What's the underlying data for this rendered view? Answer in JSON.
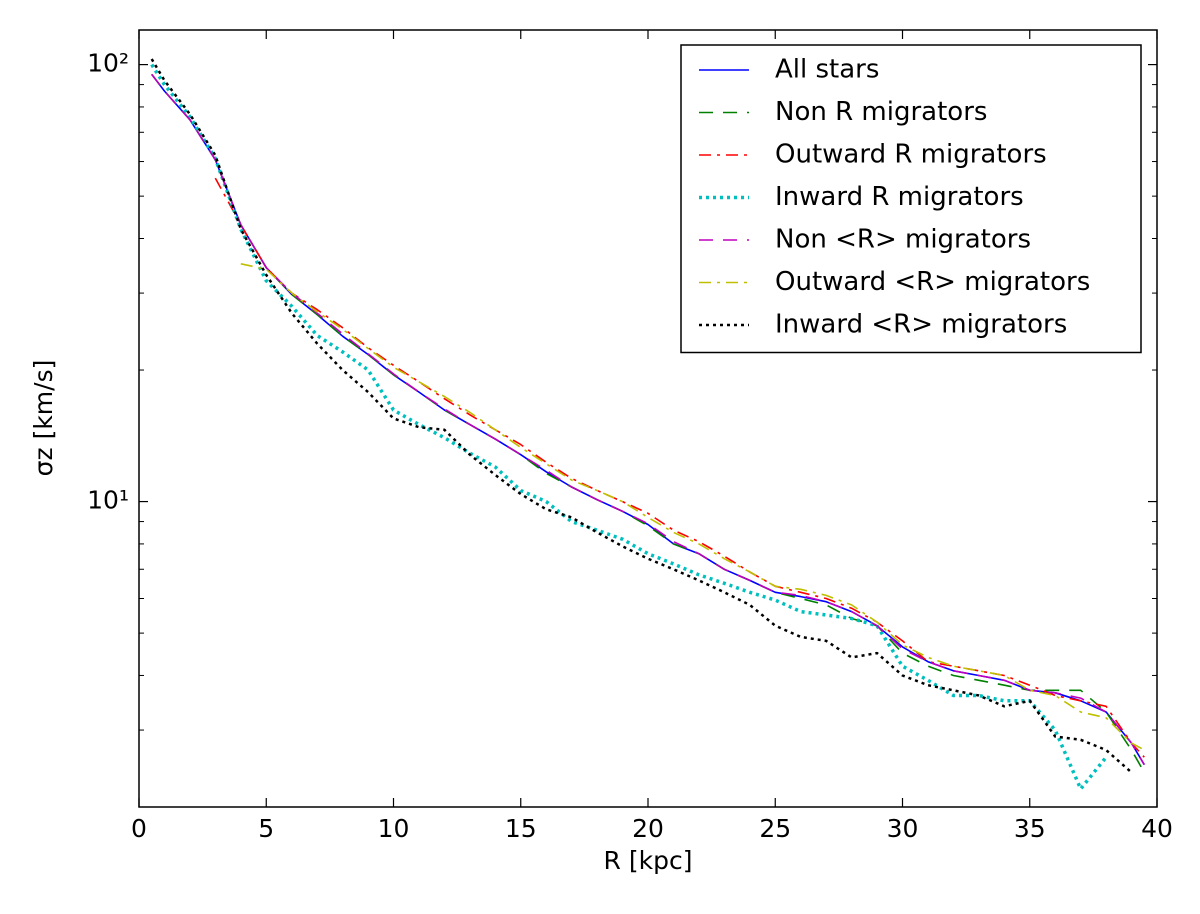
{
  "chart_data": {
    "type": "line",
    "xlabel": "R [kpc]",
    "ylabel": "σz [km/s]",
    "log_y": true,
    "xlim": [
      0,
      40
    ],
    "ylim": [
      2,
      120
    ],
    "xticks": [
      0,
      5,
      10,
      15,
      20,
      25,
      30,
      35,
      40
    ],
    "yticks": [
      {
        "value": 10,
        "label": "10¹"
      },
      {
        "value": 100,
        "label": "10²"
      }
    ],
    "yminorticks": [
      2,
      3,
      4,
      5,
      6,
      7,
      8,
      9,
      20,
      30,
      40,
      50,
      60,
      70,
      80,
      90
    ],
    "legend": "upper right",
    "x": [
      0.5,
      1,
      2,
      3,
      4,
      5,
      6,
      7,
      8,
      9,
      10,
      11,
      12,
      13,
      14,
      15,
      16,
      17,
      18,
      19,
      20,
      21,
      22,
      23,
      24,
      25,
      26,
      27,
      28,
      29,
      30,
      31,
      32,
      33,
      34,
      35,
      36,
      37,
      38,
      39,
      39.5
    ],
    "series": [
      {
        "name": "All stars",
        "color": "#0000ff",
        "linestyle": "solid",
        "values": [
          95,
          87,
          74.8,
          60.6,
          43,
          34.3,
          29.8,
          26.8,
          23.9,
          21.7,
          19.5,
          17.8,
          16.2,
          15.0,
          13.9,
          12.8,
          11.7,
          10.8,
          10.1,
          9.5,
          8.86,
          8.0,
          7.6,
          7.0,
          6.6,
          6.2,
          6.06,
          5.9,
          5.6,
          5.2,
          4.65,
          4.3,
          4.1,
          4.0,
          3.9,
          3.7,
          3.65,
          3.5,
          3.3,
          2.8,
          2.5
        ]
      },
      {
        "name": "Non R migrators",
        "color": "#008000",
        "linestyle": "dashed",
        "values": [
          95,
          87,
          74.8,
          60.6,
          43,
          34.3,
          29.8,
          26.8,
          23.9,
          21.7,
          19.5,
          17.8,
          16.2,
          15.0,
          13.9,
          12.8,
          11.6,
          10.8,
          10.1,
          9.5,
          8.8,
          8.0,
          7.6,
          7.0,
          6.6,
          6.2,
          6.0,
          5.8,
          5.4,
          5.2,
          4.5,
          4.2,
          4.0,
          3.9,
          3.8,
          3.7,
          3.7,
          3.7,
          3.3,
          2.7,
          2.4
        ]
      },
      {
        "name": "Outward R migrators",
        "color": "#ff0000",
        "linestyle": "dashdot",
        "values": [
          null,
          null,
          null,
          55,
          43,
          34.3,
          30,
          27.5,
          25,
          22.5,
          20.5,
          18.8,
          17.2,
          15.8,
          14.6,
          13.5,
          12.3,
          11.3,
          10.6,
          10.0,
          9.4,
          8.6,
          8.1,
          7.5,
          6.9,
          6.4,
          6.2,
          6.0,
          5.7,
          5.3,
          4.8,
          4.3,
          4.2,
          4.1,
          4.0,
          3.8,
          3.6,
          3.5,
          3.4,
          2.8,
          2.6
        ]
      },
      {
        "name": "Inward R migrators",
        "color": "#00bfbf",
        "linestyle": "dotted",
        "values": [
          100,
          90,
          76,
          61,
          42,
          32,
          28,
          24,
          22,
          20,
          16.2,
          15.0,
          14.0,
          12.9,
          12.0,
          10.6,
          10.0,
          9.0,
          8.6,
          8.2,
          7.6,
          7.2,
          6.8,
          6.5,
          6.2,
          5.95,
          5.6,
          5.5,
          5.4,
          5.2,
          4.2,
          3.9,
          3.6,
          3.6,
          3.5,
          3.5,
          3.0,
          2.2,
          2.6,
          null,
          null
        ]
      },
      {
        "name": "Non <R> migrators",
        "color": "#bf00bf",
        "linestyle": "dashed",
        "values": [
          95,
          87,
          74.8,
          60.6,
          43,
          34.3,
          30,
          27,
          24.2,
          21.8,
          19.6,
          17.8,
          16.3,
          15.0,
          13.9,
          12.8,
          11.8,
          10.8,
          10.1,
          9.5,
          8.9,
          8.1,
          7.6,
          7.0,
          6.6,
          6.2,
          6.1,
          5.9,
          5.6,
          5.2,
          4.6,
          4.3,
          4.1,
          4.0,
          3.9,
          3.7,
          3.65,
          3.55,
          3.3,
          2.8,
          2.5
        ]
      },
      {
        "name": "Outward <R> migrators",
        "color": "#bfbf00",
        "linestyle": "dashdot",
        "values": [
          null,
          null,
          null,
          null,
          35,
          34,
          30,
          27.2,
          24.8,
          22.4,
          20.3,
          18.8,
          17.4,
          16.0,
          14.6,
          13.3,
          12.2,
          11.2,
          10.6,
          10.0,
          9.2,
          8.5,
          8.0,
          7.4,
          6.9,
          6.4,
          6.3,
          6.1,
          5.8,
          5.3,
          4.7,
          4.4,
          4.2,
          4.1,
          4.0,
          3.7,
          3.6,
          3.3,
          3.2,
          2.8,
          2.7
        ]
      },
      {
        "name": "Inward <R> migrators",
        "color": "#000000",
        "linestyle": "dotted",
        "values": [
          103,
          92,
          77,
          62,
          42,
          33,
          27,
          23,
          20,
          17.8,
          15.5,
          14.8,
          14.6,
          12.8,
          11.5,
          10.4,
          9.6,
          9.2,
          8.5,
          7.9,
          7.4,
          7.0,
          6.6,
          6.2,
          5.8,
          5.2,
          4.9,
          4.8,
          4.4,
          4.5,
          4.0,
          3.8,
          3.7,
          3.6,
          3.4,
          3.5,
          2.9,
          2.85,
          2.7,
          2.4,
          null
        ]
      }
    ]
  }
}
